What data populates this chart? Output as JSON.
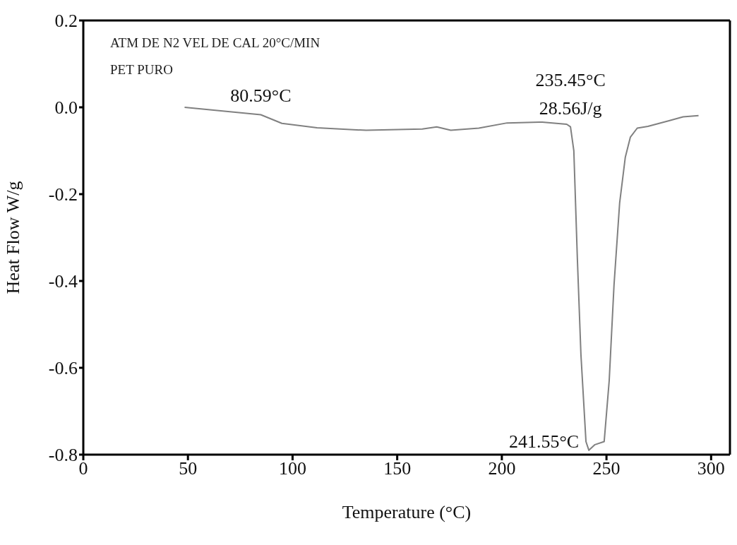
{
  "chart_data": {
    "type": "line",
    "xlabel": "Temperature (°C)",
    "ylabel": "Heat Flow W/g",
    "xlim": [
      0,
      309
    ],
    "xticks": [
      0,
      50,
      100,
      150,
      200,
      250,
      300
    ],
    "ylim": [
      -0.8,
      0.2
    ],
    "yticks": [
      0.2,
      {
        "value": 0,
        "label": "0.0"
      },
      -0.2,
      -0.4,
      -0.6,
      -0.8
    ],
    "grid": false,
    "marker": "none",
    "line_style": "solid",
    "series": [
      {
        "color": "#808080",
        "x": [
          48.4,
          84.8,
          94.9,
          111.7,
          135.2,
          162,
          168.9,
          175.6,
          189,
          202.5,
          219.3,
          231,
          232.8,
          234.4,
          236.1,
          237.8,
          240.2,
          241.6,
          244.5,
          248.9,
          251.3,
          253.6,
          256.3,
          259,
          261.4,
          264.7,
          269.8,
          279.9,
          286.6,
          294
        ],
        "values": [
          0.0,
          -0.017,
          -0.037,
          -0.047,
          -0.053,
          -0.05,
          -0.045,
          -0.053,
          -0.048,
          -0.036,
          -0.034,
          -0.039,
          -0.045,
          -0.1,
          -0.35,
          -0.57,
          -0.77,
          -0.79,
          -0.777,
          -0.77,
          -0.63,
          -0.41,
          -0.22,
          -0.115,
          -0.069,
          -0.048,
          -0.044,
          -0.031,
          -0.022,
          -0.019
        ]
      }
    ],
    "annotations": [
      "ATM DE N2 VEL DE CAL 20°C/MIN",
      "PET PURO",
      {
        "text": "80.59°C",
        "x": 84.8,
        "y": -0.017
      },
      {
        "text": "235.45°C\n28.56J/g",
        "x": 232.8,
        "y": -0.045
      },
      {
        "text": "241.55°C",
        "x": 241.6,
        "y": -0.79
      }
    ]
  }
}
